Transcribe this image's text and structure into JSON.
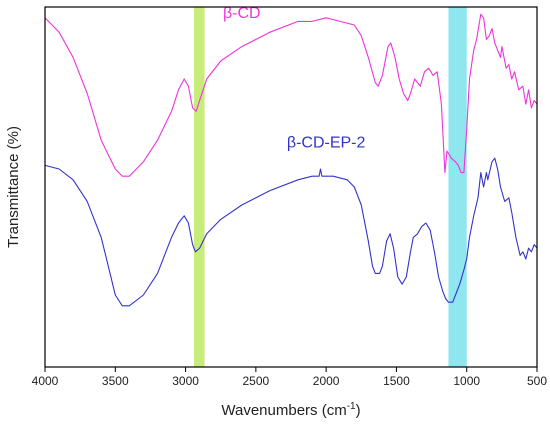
{
  "chart_data": {
    "type": "line",
    "xlabel": "Wavenumbers (cm",
    "xlabel_sup": "-1",
    "xlabel_close": ")",
    "ylabel": "Transmittance (%)",
    "xlim": [
      4000,
      500
    ],
    "ylim": [
      0,
      100
    ],
    "x_ticks": [
      4000,
      3500,
      3000,
      2500,
      2000,
      1500,
      1000,
      500
    ],
    "y_ticks_labeled": false,
    "grid": false,
    "highlight_bands": [
      {
        "x_from": 2940,
        "x_to": 2865,
        "color": "#c8ec7a"
      },
      {
        "x_from": 1130,
        "x_to": 1000,
        "color": "#8fe6ef"
      }
    ],
    "series": [
      {
        "name": "β-CD",
        "color": "#ee33dd",
        "points": [
          [
            4000,
            97
          ],
          [
            3900,
            93
          ],
          [
            3800,
            86
          ],
          [
            3700,
            76
          ],
          [
            3600,
            63
          ],
          [
            3500,
            55
          ],
          [
            3450,
            53
          ],
          [
            3400,
            53
          ],
          [
            3300,
            57
          ],
          [
            3200,
            63
          ],
          [
            3100,
            71
          ],
          [
            3050,
            77
          ],
          [
            3010,
            80
          ],
          [
            2980,
            78
          ],
          [
            2950,
            72
          ],
          [
            2925,
            71
          ],
          [
            2900,
            74
          ],
          [
            2850,
            80
          ],
          [
            2750,
            85
          ],
          [
            2600,
            89
          ],
          [
            2400,
            93
          ],
          [
            2200,
            96
          ],
          [
            2100,
            96
          ],
          [
            2000,
            97
          ],
          [
            1900,
            96
          ],
          [
            1800,
            95
          ],
          [
            1750,
            92
          ],
          [
            1700,
            86
          ],
          [
            1650,
            79
          ],
          [
            1630,
            78
          ],
          [
            1600,
            81
          ],
          [
            1560,
            89
          ],
          [
            1540,
            90
          ],
          [
            1510,
            86
          ],
          [
            1480,
            80
          ],
          [
            1450,
            76
          ],
          [
            1420,
            74
          ],
          [
            1400,
            76
          ],
          [
            1370,
            80
          ],
          [
            1330,
            78
          ],
          [
            1300,
            82
          ],
          [
            1270,
            83
          ],
          [
            1240,
            81
          ],
          [
            1210,
            82
          ],
          [
            1180,
            73
          ],
          [
            1155,
            54
          ],
          [
            1140,
            60
          ],
          [
            1110,
            58
          ],
          [
            1080,
            57
          ],
          [
            1060,
            56
          ],
          [
            1040,
            54
          ],
          [
            1020,
            54
          ],
          [
            1000,
            66
          ],
          [
            980,
            80
          ],
          [
            950,
            88
          ],
          [
            930,
            91
          ],
          [
            900,
            98
          ],
          [
            880,
            97
          ],
          [
            860,
            91
          ],
          [
            840,
            92
          ],
          [
            820,
            94
          ],
          [
            800,
            90
          ],
          [
            780,
            88
          ],
          [
            760,
            86
          ],
          [
            750,
            89
          ],
          [
            720,
            83
          ],
          [
            700,
            84
          ],
          [
            680,
            80
          ],
          [
            660,
            82
          ],
          [
            630,
            77
          ],
          [
            600,
            78
          ],
          [
            580,
            73
          ],
          [
            560,
            77
          ],
          [
            540,
            72
          ],
          [
            520,
            74
          ],
          [
            500,
            73
          ]
        ]
      },
      {
        "name": "β-CD-EP-2",
        "color": "#3333cc",
        "points": [
          [
            4000,
            56
          ],
          [
            3900,
            55
          ],
          [
            3800,
            52
          ],
          [
            3700,
            46
          ],
          [
            3600,
            36
          ],
          [
            3550,
            28
          ],
          [
            3500,
            20
          ],
          [
            3450,
            17
          ],
          [
            3400,
            17
          ],
          [
            3300,
            20
          ],
          [
            3200,
            26
          ],
          [
            3150,
            31
          ],
          [
            3100,
            36
          ],
          [
            3050,
            40
          ],
          [
            3010,
            42
          ],
          [
            2980,
            40
          ],
          [
            2950,
            34
          ],
          [
            2930,
            32
          ],
          [
            2900,
            33
          ],
          [
            2850,
            37
          ],
          [
            2750,
            41
          ],
          [
            2600,
            45
          ],
          [
            2400,
            49
          ],
          [
            2200,
            52
          ],
          [
            2100,
            53
          ],
          [
            2050,
            53
          ],
          [
            2040,
            55
          ],
          [
            2030,
            53
          ],
          [
            1950,
            53
          ],
          [
            1850,
            52
          ],
          [
            1800,
            50
          ],
          [
            1750,
            45
          ],
          [
            1700,
            35
          ],
          [
            1670,
            28
          ],
          [
            1650,
            26
          ],
          [
            1620,
            26
          ],
          [
            1600,
            28
          ],
          [
            1570,
            35
          ],
          [
            1545,
            37
          ],
          [
            1520,
            33
          ],
          [
            1490,
            25
          ],
          [
            1460,
            23
          ],
          [
            1430,
            25
          ],
          [
            1400,
            32
          ],
          [
            1380,
            36
          ],
          [
            1350,
            37
          ],
          [
            1320,
            39
          ],
          [
            1290,
            40
          ],
          [
            1260,
            38
          ],
          [
            1230,
            32
          ],
          [
            1200,
            25
          ],
          [
            1170,
            21
          ],
          [
            1150,
            19
          ],
          [
            1130,
            18
          ],
          [
            1100,
            18
          ],
          [
            1080,
            20
          ],
          [
            1050,
            23
          ],
          [
            1020,
            27
          ],
          [
            1000,
            30
          ],
          [
            980,
            36
          ],
          [
            950,
            42
          ],
          [
            920,
            47
          ],
          [
            900,
            54
          ],
          [
            880,
            50
          ],
          [
            860,
            54
          ],
          [
            850,
            52
          ],
          [
            820,
            57
          ],
          [
            800,
            58
          ],
          [
            780,
            55
          ],
          [
            760,
            50
          ],
          [
            730,
            46
          ],
          [
            700,
            47
          ],
          [
            680,
            43
          ],
          [
            650,
            36
          ],
          [
            620,
            31
          ],
          [
            600,
            32
          ],
          [
            580,
            30
          ],
          [
            560,
            33
          ],
          [
            540,
            32
          ],
          [
            520,
            34
          ],
          [
            500,
            33
          ]
        ]
      }
    ],
    "annotations": [
      {
        "text": "β-CD",
        "series": 0,
        "x": 2600,
        "y": 97
      },
      {
        "text": "β-CD-EP-2",
        "series": 1,
        "x": 2000,
        "y": 61
      }
    ]
  }
}
